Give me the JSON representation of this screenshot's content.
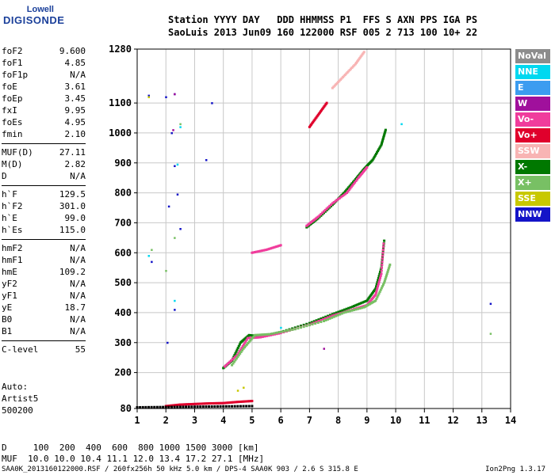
{
  "logo": {
    "top": "Lowell",
    "bottom": "DIGISONDE"
  },
  "header": {
    "line1": "Station YYYY DAY   DDD HHMMSS P1  FFS S AXN PPS IGA PS",
    "line2": "SaoLuis 2013 Jun09 160 122000 RSF 005 2 713 100 10+ 22"
  },
  "params_group1": [
    {
      "k": "foF2",
      "v": "9.600"
    },
    {
      "k": "foF1",
      "v": "4.85"
    },
    {
      "k": "foF1p",
      "v": "N/A"
    },
    {
      "k": "foE",
      "v": "3.61"
    },
    {
      "k": "foEp",
      "v": "3.45"
    },
    {
      "k": "fxI",
      "v": "9.95"
    },
    {
      "k": "foEs",
      "v": "4.95"
    },
    {
      "k": "fmin",
      "v": "2.10"
    }
  ],
  "params_group2": [
    {
      "k": "MUF(D)",
      "v": "27.11"
    },
    {
      "k": "M(D)",
      "v": "2.82"
    },
    {
      "k": "D",
      "v": "N/A"
    }
  ],
  "params_group3": [
    {
      "k": "h`F",
      "v": "129.5"
    },
    {
      "k": "h`F2",
      "v": "301.0"
    },
    {
      "k": "h`E",
      "v": "99.0"
    },
    {
      "k": "h`Es",
      "v": "115.0"
    }
  ],
  "params_group4": [
    {
      "k": "hmF2",
      "v": "N/A"
    },
    {
      "k": "hmF1",
      "v": "N/A"
    },
    {
      "k": "hmE",
      "v": "109.2"
    },
    {
      "k": "yF2",
      "v": "N/A"
    },
    {
      "k": "yF1",
      "v": "N/A"
    },
    {
      "k": "yE",
      "v": "18.7"
    },
    {
      "k": "B0",
      "v": "N/A"
    },
    {
      "k": "B1",
      "v": "N/A"
    }
  ],
  "params_group5": [
    {
      "k": "C-level",
      "v": "55"
    }
  ],
  "auto": {
    "l1": "Auto:",
    "l2": "Artist5",
    "l3": "500200"
  },
  "footer": {
    "d_line": "D     100  200  400  600  800 1000 1500 3000 [km]",
    "muf_line": "MUF  10.0 10.0 10.4 11.1 12.0 13.4 17.2 27.1 [MHz]"
  },
  "source_line": "SAA0K_2013160122000.RSF / 260fx256h 50 kHz 5.0 km / DPS-4 SAA0K 903 / 2.6 S 315.8 E",
  "version": "Ion2Png 1.3.17",
  "legend": [
    {
      "label": "NoVal",
      "color": "#8c8c8c"
    },
    {
      "label": "NNE",
      "color": "#00d8f0"
    },
    {
      "label": "E",
      "color": "#3c9cf0"
    },
    {
      "label": "W",
      "color": "#a0109c"
    },
    {
      "label": "Vo-",
      "color": "#f03c9c"
    },
    {
      "label": "Vo+",
      "color": "#e0002c"
    },
    {
      "label": "SSW",
      "color": "#f8b4b4"
    },
    {
      "label": "X-",
      "color": "#007800"
    },
    {
      "label": "X+",
      "color": "#78c064"
    },
    {
      "label": "SSE",
      "color": "#c8c800"
    },
    {
      "label": "NNW",
      "color": "#1414c8"
    }
  ],
  "chart_data": {
    "type": "scatter",
    "title": "",
    "xlabel": "",
    "ylabel": "",
    "xlim": [
      1,
      14
    ],
    "ylim": [
      80,
      1280
    ],
    "x_ticks": [
      1,
      2,
      3,
      4,
      5,
      6,
      7,
      8,
      9,
      10,
      11,
      12,
      13,
      14
    ],
    "y_ticks": [
      80,
      200,
      300,
      400,
      500,
      600,
      700,
      800,
      900,
      1000,
      1100,
      1280
    ],
    "grid": true,
    "series": [
      {
        "kind": "trace",
        "color": "#007800",
        "points": [
          [
            4.0,
            215
          ],
          [
            4.3,
            240
          ],
          [
            4.6,
            300
          ],
          [
            4.9,
            325
          ],
          [
            5.3,
            320
          ],
          [
            6.0,
            335
          ],
          [
            7.0,
            365
          ],
          [
            7.8,
            395
          ],
          [
            8.5,
            420
          ],
          [
            9.0,
            440
          ],
          [
            9.3,
            480
          ],
          [
            9.5,
            550
          ],
          [
            9.6,
            640
          ]
        ]
      },
      {
        "kind": "trace",
        "color": "#f03c9c",
        "points": [
          [
            4.05,
            220
          ],
          [
            4.5,
            260
          ],
          [
            4.85,
            315
          ],
          [
            5.3,
            318
          ],
          [
            6.0,
            332
          ],
          [
            7.0,
            360
          ],
          [
            7.8,
            390
          ],
          [
            8.5,
            410
          ],
          [
            9.0,
            425
          ],
          [
            9.3,
            460
          ],
          [
            9.5,
            530
          ],
          [
            9.58,
            630
          ]
        ]
      },
      {
        "kind": "trace",
        "color": "#78c064",
        "points": [
          [
            4.3,
            225
          ],
          [
            4.7,
            280
          ],
          [
            5.1,
            325
          ],
          [
            5.6,
            328
          ],
          [
            6.5,
            345
          ],
          [
            7.5,
            372
          ],
          [
            8.2,
            400
          ],
          [
            8.9,
            418
          ],
          [
            9.3,
            440
          ],
          [
            9.6,
            500
          ],
          [
            9.8,
            560
          ]
        ]
      },
      {
        "kind": "trace",
        "color": "#007800",
        "points": [
          [
            6.9,
            685
          ],
          [
            7.3,
            715
          ],
          [
            7.8,
            760
          ],
          [
            8.2,
            800
          ],
          [
            8.6,
            845
          ],
          [
            8.9,
            880
          ],
          [
            9.2,
            910
          ],
          [
            9.5,
            960
          ],
          [
            9.65,
            1010
          ]
        ]
      },
      {
        "kind": "trace",
        "color": "#f03c9c",
        "points": [
          [
            6.9,
            690
          ],
          [
            7.3,
            720
          ],
          [
            7.8,
            765
          ],
          [
            8.3,
            800
          ],
          [
            8.7,
            850
          ],
          [
            9.0,
            885
          ]
        ]
      },
      {
        "kind": "trace",
        "color": "#e0002c",
        "points": [
          [
            7.0,
            1020
          ],
          [
            7.3,
            1060
          ],
          [
            7.6,
            1100
          ]
        ]
      },
      {
        "kind": "trace",
        "color": "#f8b4b4",
        "points": [
          [
            7.8,
            1150
          ],
          [
            8.2,
            1190
          ],
          [
            8.6,
            1230
          ],
          [
            8.9,
            1270
          ]
        ]
      },
      {
        "kind": "trace",
        "color": "#f03c9c",
        "points": [
          [
            5.0,
            600
          ],
          [
            5.5,
            610
          ],
          [
            6.0,
            625
          ]
        ]
      },
      {
        "kind": "trace",
        "color": "#e0002c",
        "points": [
          [
            2.0,
            88
          ],
          [
            2.5,
            93
          ],
          [
            3.0,
            95
          ],
          [
            3.5,
            97
          ],
          [
            4.0,
            98
          ],
          [
            4.5,
            102
          ],
          [
            5.0,
            105
          ]
        ]
      },
      {
        "kind": "trace",
        "color": "#000000",
        "points": [
          [
            1.0,
            84
          ],
          [
            2.0,
            85
          ],
          [
            3.0,
            86
          ],
          [
            4.0,
            87
          ],
          [
            5.0,
            88
          ]
        ]
      },
      {
        "kind": "dots",
        "color": "#1414c8",
        "points": [
          [
            2.3,
            1130
          ],
          [
            2.2,
            1000
          ],
          [
            2.3,
            890
          ],
          [
            2.1,
            755
          ],
          [
            2.4,
            795
          ],
          [
            2.5,
            680
          ],
          [
            1.4,
            1125
          ],
          [
            2.0,
            1120
          ],
          [
            3.4,
            910
          ],
          [
            2.05,
            300
          ],
          [
            13.3,
            430
          ],
          [
            2.3,
            410
          ],
          [
            1.5,
            570
          ],
          [
            3.6,
            1100
          ]
        ]
      },
      {
        "kind": "dots",
        "color": "#00d8f0",
        "points": [
          [
            2.5,
            1020
          ],
          [
            2.3,
            440
          ],
          [
            1.4,
            590
          ],
          [
            2.4,
            895
          ],
          [
            10.2,
            1030
          ],
          [
            6.0,
            350
          ]
        ]
      },
      {
        "kind": "dots",
        "color": "#78c064",
        "points": [
          [
            2.5,
            1030
          ],
          [
            2.3,
            650
          ],
          [
            1.5,
            610
          ],
          [
            13.3,
            330
          ],
          [
            2.0,
            540
          ]
        ]
      },
      {
        "kind": "dots",
        "color": "#a0109c",
        "points": [
          [
            2.3,
            1130
          ],
          [
            2.25,
            1010
          ],
          [
            7.5,
            280
          ]
        ]
      },
      {
        "kind": "dots",
        "color": "#c8c800",
        "points": [
          [
            1.4,
            1120
          ],
          [
            4.5,
            140
          ],
          [
            4.7,
            150
          ]
        ]
      }
    ],
    "annotations": []
  }
}
